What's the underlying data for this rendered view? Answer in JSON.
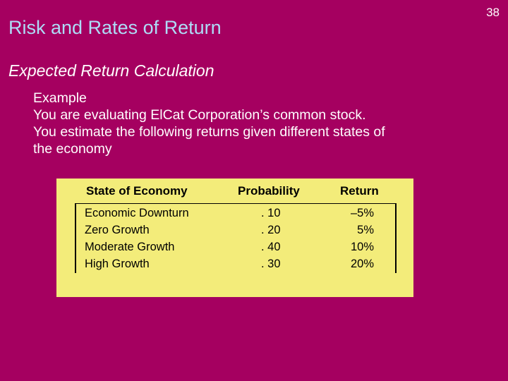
{
  "slide": {
    "number": "38",
    "title": "Risk and Rates of Return",
    "subtitle": "Expected Return Calculation",
    "body": [
      "Example",
      "You are evaluating ElCat Corporation’s common stock.",
      "You estimate the following returns given different states of",
      "the economy"
    ]
  },
  "table": {
    "headers": {
      "state": "State of Economy",
      "probability": "Probability",
      "return": "Return"
    },
    "rows": [
      {
        "state": "Economic Downturn",
        "probability": ". 10",
        "return": "–5%"
      },
      {
        "state": "Zero Growth",
        "probability": ". 20",
        "return": "5%"
      },
      {
        "state": "Moderate Growth",
        "probability": ". 40",
        "return": "10%"
      },
      {
        "state": "High Growth",
        "probability": ". 30",
        "return": "20%"
      }
    ]
  },
  "colors": {
    "background": "#a50060",
    "title": "#aedcf7",
    "table_background": "#f3ec7a"
  }
}
